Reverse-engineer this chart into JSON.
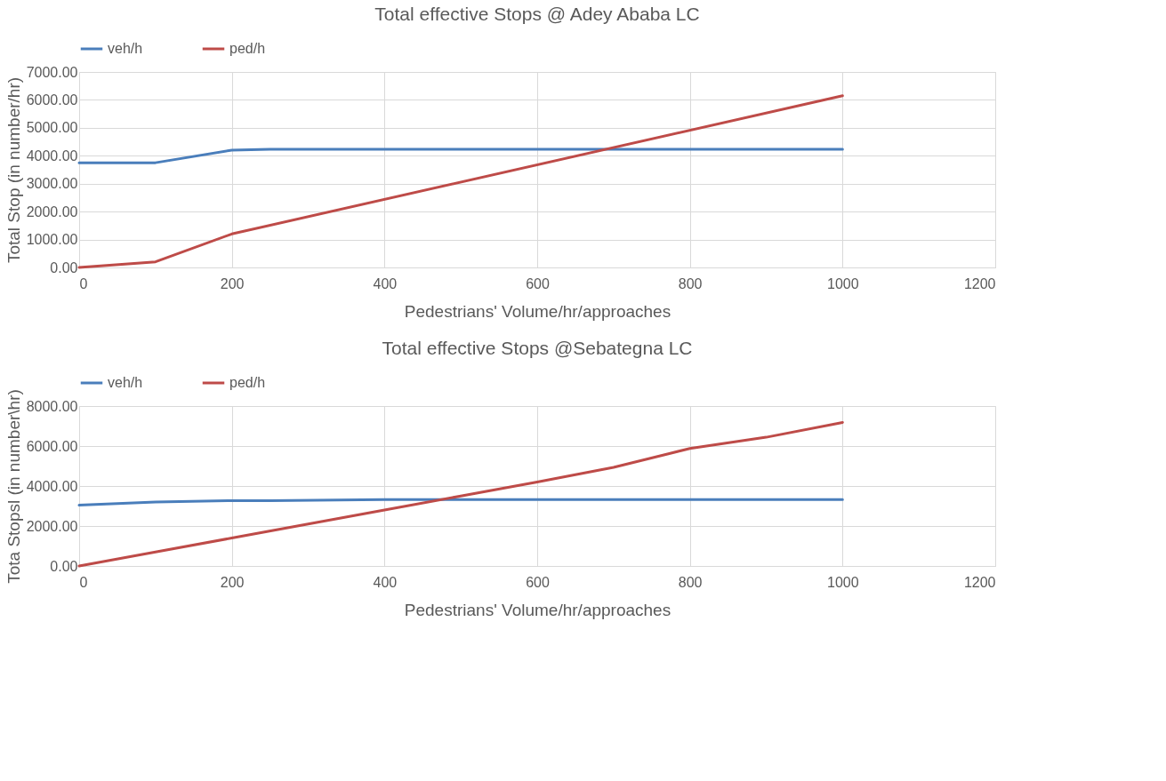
{
  "chart_data": [
    {
      "type": "line",
      "title": "Total effective Stops @ Adey Ababa LC",
      "xlabel": "Pedestrians' Volume/hr/approaches",
      "ylabel": "Total Stop (in number/hr)",
      "series": [
        {
          "name": "veh/h",
          "color": "#4a7ebb",
          "x": [
            0,
            100,
            200,
            250,
            1000
          ],
          "values": [
            3750,
            3750,
            4200,
            4230,
            4230
          ]
        },
        {
          "name": "ped/h",
          "color": "#be4b48",
          "x": [
            0,
            100,
            200,
            1000
          ],
          "values": [
            0,
            200,
            1200,
            6150
          ]
        }
      ],
      "xlim": [
        0,
        1200
      ],
      "xticks": [
        0,
        200,
        400,
        600,
        800,
        1000,
        1200
      ],
      "ylim": [
        0,
        7000
      ],
      "yticks": [
        {
          "value": 0,
          "label": "0.00"
        },
        {
          "value": 1000,
          "label": "1000.00"
        },
        {
          "value": 2000,
          "label": "2000.00"
        },
        {
          "value": 3000,
          "label": "3000.00"
        },
        {
          "value": 4000,
          "label": "4000.00"
        },
        {
          "value": 5000,
          "label": "5000.00"
        },
        {
          "value": 6000,
          "label": "6000.00"
        },
        {
          "value": 7000,
          "label": "7000.00"
        }
      ],
      "grid": true,
      "legend": "top"
    },
    {
      "type": "line",
      "title": "Total effective Stops @Sebategna LC",
      "xlabel": "Pedestrians' Volume/hr/approaches",
      "ylabel": "Tota Stopsl (in number\\hr)",
      "series": [
        {
          "name": "veh/h",
          "color": "#4a7ebb",
          "x": [
            0,
            100,
            200,
            250,
            400,
            1000
          ],
          "values": [
            3040,
            3200,
            3270,
            3270,
            3320,
            3320
          ]
        },
        {
          "name": "ped/h",
          "color": "#be4b48",
          "x": [
            0,
            100,
            200,
            300,
            400,
            500,
            600,
            700,
            800,
            900,
            1000
          ],
          "values": [
            0,
            700,
            1400,
            2100,
            2800,
            3500,
            4200,
            4930,
            5880,
            6440,
            7180
          ]
        }
      ],
      "xlim": [
        0,
        1200
      ],
      "xticks": [
        0,
        200,
        400,
        600,
        800,
        1000,
        1200
      ],
      "ylim": [
        0,
        8000
      ],
      "yticks": [
        {
          "value": 0,
          "label": "0.00"
        },
        {
          "value": 2000,
          "label": "2000.00"
        },
        {
          "value": 4000,
          "label": "4000.00"
        },
        {
          "value": 6000,
          "label": "6000.00"
        },
        {
          "value": 8000,
          "label": "8000.00"
        }
      ],
      "grid": true,
      "legend": "top"
    }
  ]
}
